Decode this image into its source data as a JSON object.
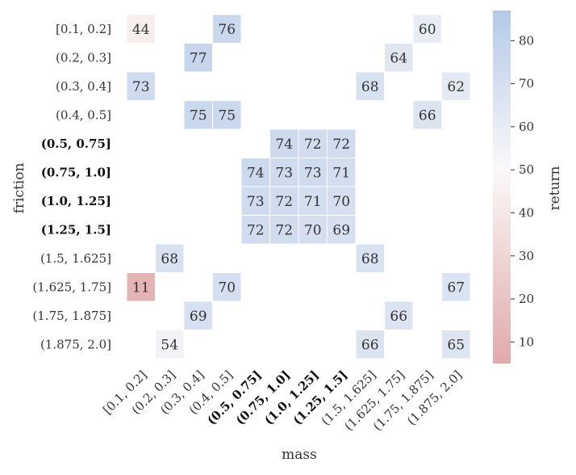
{
  "chart_data": {
    "type": "heatmap",
    "xlabel": "mass",
    "ylabel": "friction",
    "colorbar_label": "return",
    "colorbar_range": [
      5,
      87
    ],
    "colorbar_ticks": [
      10,
      20,
      30,
      40,
      50,
      60,
      70,
      80
    ],
    "colors": {
      "low": "#e0aaa9",
      "mid": "#fbf8f9",
      "high": "#b4cae8",
      "line": "#ffffff"
    },
    "x_categories": [
      "[0.1, 0.2]",
      "(0.2, 0.3]",
      "(0.3, 0.4]",
      "(0.4, 0.5]",
      "(0.5, 0.75]",
      "(0.75, 1.0]",
      "(1.0, 1.25]",
      "(1.25, 1.5]",
      "(1.5, 1.625]",
      "(1.625, 1.75]",
      "(1.75, 1.875]",
      "(1.875, 2.0]"
    ],
    "y_categories": [
      "[0.1, 0.2]",
      "(0.2, 0.3]",
      "(0.3, 0.4]",
      "(0.4, 0.5]",
      "(0.5, 0.75]",
      "(0.75, 1.0]",
      "(1.0, 1.25]",
      "(1.25, 1.5]",
      "(1.5, 1.625]",
      "(1.625, 1.75]",
      "(1.75, 1.875]",
      "(1.875, 2.0]"
    ],
    "bold_x": [
      4,
      5,
      6,
      7
    ],
    "bold_y": [
      4,
      5,
      6,
      7
    ],
    "values": [
      [
        44,
        null,
        null,
        76,
        null,
        null,
        null,
        null,
        null,
        null,
        60,
        null
      ],
      [
        null,
        null,
        77,
        null,
        null,
        null,
        null,
        null,
        null,
        64,
        null,
        null
      ],
      [
        73,
        null,
        null,
        null,
        null,
        null,
        null,
        null,
        68,
        null,
        null,
        62
      ],
      [
        null,
        null,
        75,
        75,
        null,
        null,
        null,
        null,
        null,
        null,
        66,
        null
      ],
      [
        null,
        null,
        null,
        null,
        null,
        74,
        72,
        72,
        null,
        null,
        null,
        null
      ],
      [
        null,
        null,
        null,
        null,
        74,
        73,
        73,
        71,
        null,
        null,
        null,
        null
      ],
      [
        null,
        null,
        null,
        null,
        73,
        72,
        71,
        70,
        null,
        null,
        null,
        null
      ],
      [
        null,
        null,
        null,
        null,
        72,
        72,
        70,
        69,
        null,
        null,
        null,
        null
      ],
      [
        null,
        68,
        null,
        null,
        null,
        null,
        null,
        null,
        68,
        null,
        null,
        null
      ],
      [
        11,
        null,
        null,
        70,
        null,
        null,
        null,
        null,
        null,
        null,
        null,
        67
      ],
      [
        null,
        null,
        69,
        null,
        null,
        null,
        null,
        null,
        null,
        66,
        null,
        null
      ],
      [
        null,
        54,
        null,
        null,
        null,
        null,
        null,
        null,
        66,
        null,
        null,
        65
      ]
    ]
  }
}
